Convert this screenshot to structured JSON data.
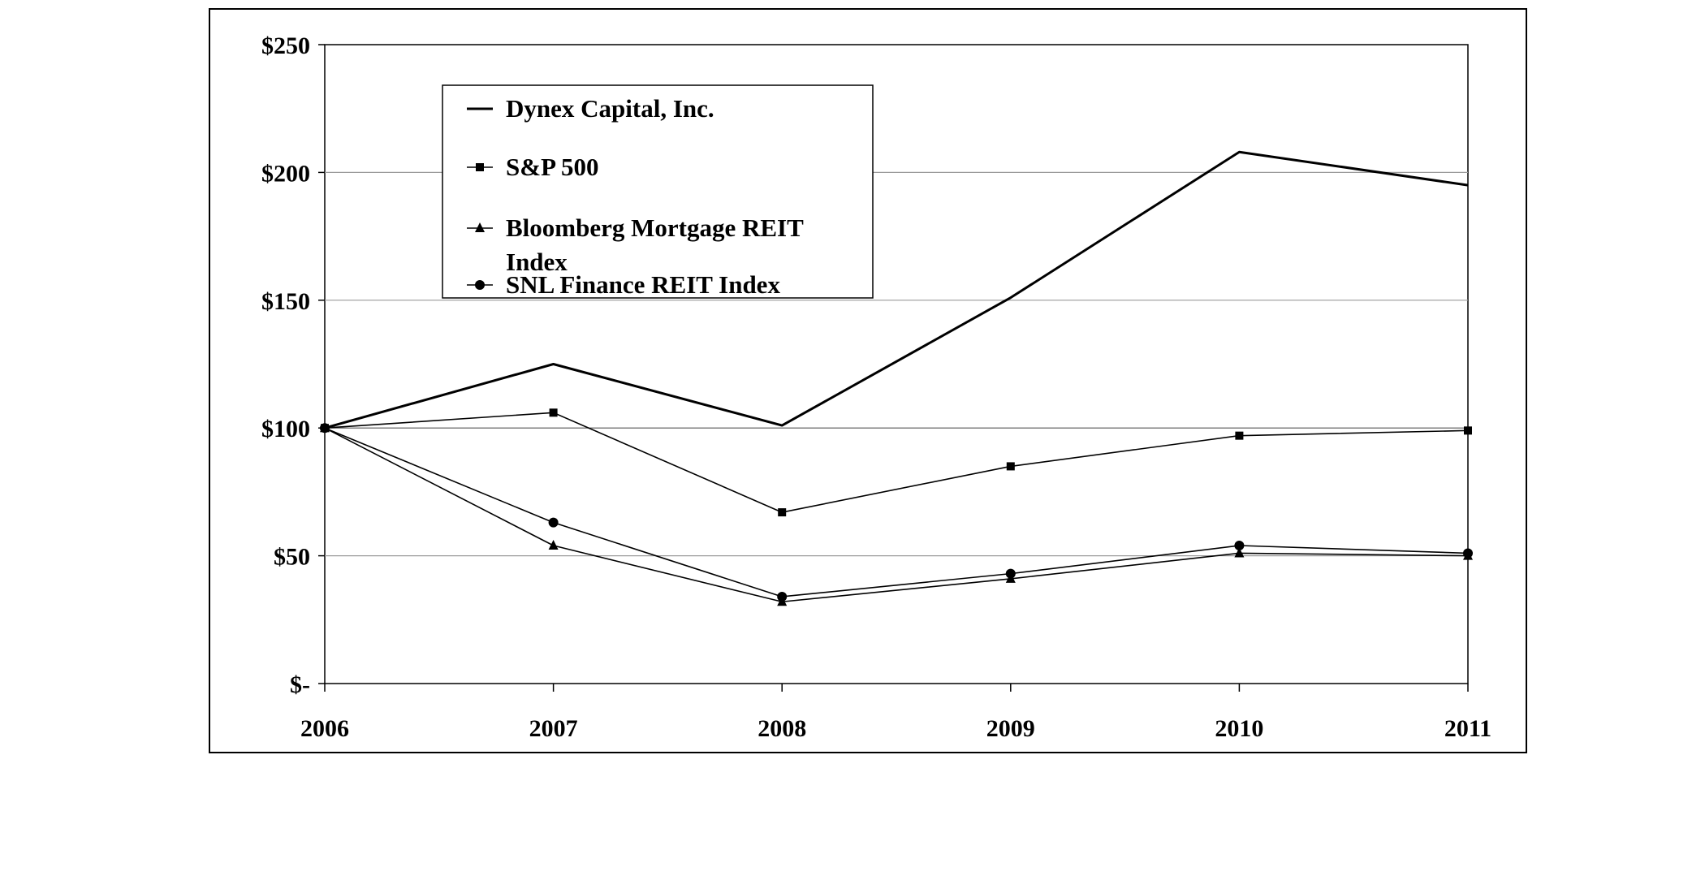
{
  "chart_data": {
    "type": "line",
    "categories": [
      "2006",
      "2007",
      "2008",
      "2009",
      "2010",
      "2011"
    ],
    "ylim": [
      0,
      250
    ],
    "yticks": [
      0,
      50,
      100,
      150,
      200,
      250
    ],
    "ytick_labels": [
      "$-",
      "$50",
      "$100",
      "$150",
      "$200",
      "$250"
    ],
    "grid": true,
    "legend_position": "top-left",
    "series": [
      {
        "name": "Dynex Capital, Inc.",
        "marker": "none",
        "stroke_weight": "heavy",
        "values": [
          100,
          125,
          101,
          151,
          208,
          195
        ]
      },
      {
        "name": "S&P 500",
        "marker": "square",
        "stroke_weight": "light",
        "values": [
          100,
          106,
          67,
          85,
          97,
          99
        ]
      },
      {
        "name": "Bloomberg Mortgage REIT Index",
        "marker": "triangle",
        "stroke_weight": "light",
        "values": [
          100,
          54,
          32,
          41,
          51,
          50
        ]
      },
      {
        "name": "SNL Finance REIT Index",
        "marker": "circle",
        "stroke_weight": "light",
        "values": [
          100,
          63,
          34,
          43,
          54,
          51
        ]
      }
    ]
  }
}
